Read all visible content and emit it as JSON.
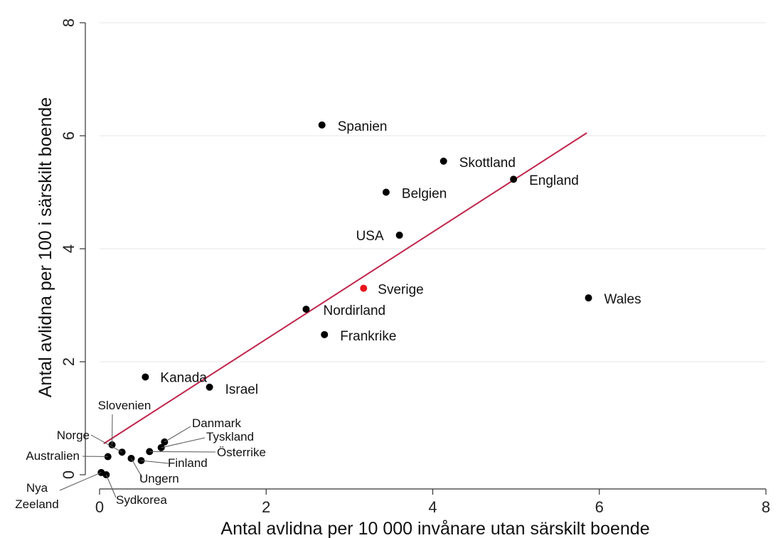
{
  "chart_data": {
    "type": "scatter",
    "xlabel": "Antal avlidna per 10 000 invånare utan särskilt boende",
    "ylabel": "Antal avlidna per 100 i särskilt boende",
    "xlim": [
      0,
      8
    ],
    "ylim": [
      0,
      8
    ],
    "xticks": [
      0,
      2,
      4,
      6,
      8
    ],
    "yticks": [
      0,
      2,
      4,
      6,
      8
    ],
    "grid": "horizontal",
    "highlight_color": "#e8141b",
    "point_color": "#000000",
    "fit_line_color": "#c0254b",
    "fit_line": {
      "x1": 0.05,
      "y1": 0.55,
      "x2": 5.85,
      "y2": 6.05
    },
    "points": [
      {
        "label": "Spanien",
        "x": 2.67,
        "y": 6.19
      },
      {
        "label": "Skottland",
        "x": 4.13,
        "y": 5.55
      },
      {
        "label": "England",
        "x": 4.97,
        "y": 5.23
      },
      {
        "label": "Belgien",
        "x": 3.44,
        "y": 5.0
      },
      {
        "label": "USA",
        "x": 3.6,
        "y": 4.24
      },
      {
        "label": "Sverige",
        "x": 3.17,
        "y": 3.3,
        "highlight": true
      },
      {
        "label": "Wales",
        "x": 5.87,
        "y": 3.13
      },
      {
        "label": "Nordirland",
        "x": 2.48,
        "y": 2.93
      },
      {
        "label": "Frankrike",
        "x": 2.7,
        "y": 2.48
      },
      {
        "label": "Kanada",
        "x": 0.55,
        "y": 1.73
      },
      {
        "label": "Israel",
        "x": 1.32,
        "y": 1.55
      },
      {
        "label": "Slovenien",
        "x": 0.15,
        "y": 0.53
      },
      {
        "label": "Norge",
        "x": 0.27,
        "y": 0.4
      },
      {
        "label": "Australien",
        "x": 0.1,
        "y": 0.32
      },
      {
        "label": "Danmark",
        "x": 0.78,
        "y": 0.58
      },
      {
        "label": "Tyskland",
        "x": 0.74,
        "y": 0.48
      },
      {
        "label": "Österrike",
        "x": 0.6,
        "y": 0.41
      },
      {
        "label": "Finland",
        "x": 0.5,
        "y": 0.25
      },
      {
        "label": "Ungern",
        "x": 0.38,
        "y": 0.29
      },
      {
        "label": "Nya Zeeland",
        "x": 0.02,
        "y": 0.04
      },
      {
        "label": "Sydkorea",
        "x": 0.08,
        "y": 0.0
      }
    ]
  }
}
